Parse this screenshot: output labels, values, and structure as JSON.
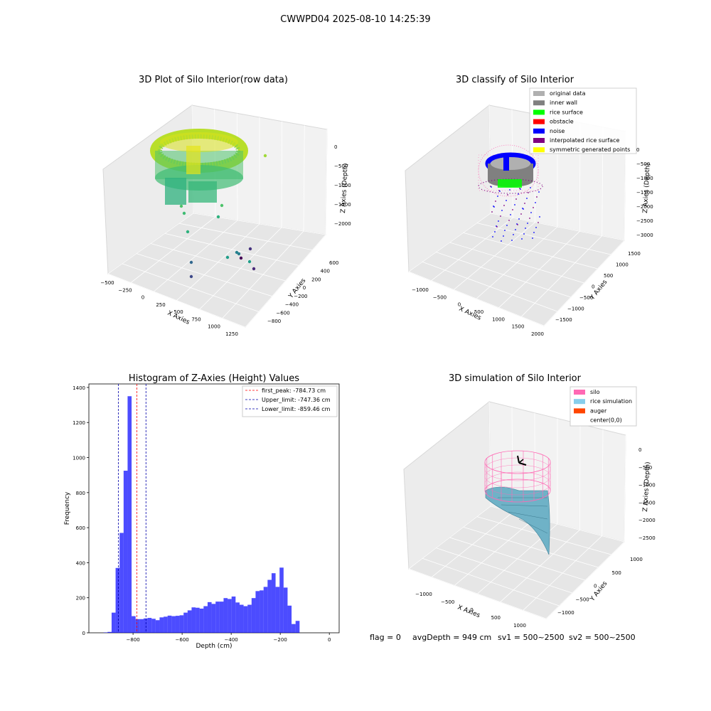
{
  "figure": {
    "suptitle": "CWWPD04 2025-08-10 14:25:39",
    "footer": {
      "flag": "flag = 0",
      "avg_depth": "avgDepth = 949 cm",
      "sv1": "sv1 = 500~2500",
      "sv2": "sv2 = 500~2500"
    }
  },
  "chart_data": [
    {
      "type": "scatter",
      "title": "3D Plot of Silo Interior(row data)",
      "xlabel": "X Axies",
      "ylabel": "Y Axies",
      "zlabel": "Z Axies (Depth)",
      "x_ticks": [
        "−500",
        "−250",
        "0",
        "250",
        "500",
        "750",
        "1000",
        "1250"
      ],
      "y_ticks": [
        "−800",
        "−600",
        "−400",
        "−200",
        "0",
        "200",
        "400",
        "600"
      ],
      "z_ticks": [
        "0",
        "−500",
        "−1000",
        "−1500",
        "−2000"
      ],
      "colormap": "viridis"
    },
    {
      "type": "scatter",
      "title": "3D classify of Silo Interior",
      "xlabel": "X Axies",
      "ylabel": "Y Axies",
      "zlabel": "Z Axies (Depth)",
      "x_ticks": [
        "−1000",
        "−500",
        "0",
        "500",
        "1000",
        "1500",
        "2000"
      ],
      "y_ticks": [
        "−1500",
        "−1000",
        "−500",
        "0",
        "500",
        "1000",
        "1500"
      ],
      "z_ticks": [
        "0",
        "−500",
        "−1000",
        "−1500",
        "−2000",
        "−2500",
        "−3000"
      ],
      "legend": [
        {
          "label": "original data",
          "color": "#b0b0b0"
        },
        {
          "label": "inner wall",
          "color": "#808080"
        },
        {
          "label": "rice surface",
          "color": "#00ff00"
        },
        {
          "label": "obstacle",
          "color": "#ff0000"
        },
        {
          "label": "noise",
          "color": "#0000ff"
        },
        {
          "label": "interpolated rice surface",
          "color": "#800080"
        },
        {
          "label": "symmetric generated points",
          "color": "#ffff00"
        }
      ],
      "legend_position": "top-right"
    },
    {
      "type": "bar",
      "title": "Histogram of Z-Axies (Height) Values",
      "xlabel": "Depth (cm)",
      "ylabel": "Frequency",
      "xlim": [
        -980,
        40
      ],
      "ylim": [
        0,
        1420
      ],
      "x_ticks": [
        -800,
        -600,
        -400,
        -200,
        0
      ],
      "x_tick_labels": [
        "−800",
        "−600",
        "−400",
        "−200",
        "0"
      ],
      "y_ticks": [
        0,
        200,
        400,
        600,
        800,
        1000,
        1200,
        1400
      ],
      "bin_width": 16.3,
      "bin_start": -920,
      "values": [
        2,
        5,
        115,
        370,
        570,
        925,
        1350,
        95,
        78,
        78,
        82,
        85,
        80,
        72,
        88,
        92,
        98,
        95,
        97,
        100,
        115,
        128,
        145,
        143,
        138,
        152,
        175,
        165,
        178,
        178,
        198,
        193,
        207,
        173,
        160,
        152,
        160,
        198,
        238,
        242,
        262,
        302,
        340,
        262,
        372,
        258,
        155,
        50,
        68
      ],
      "color": "#0000ff",
      "vlines": [
        {
          "label": "first_peak: -784.73 cm",
          "x": -784.73,
          "color": "#ff0000"
        },
        {
          "label": "Upper_limit: -747.36 cm",
          "x": -747.36,
          "color": "#0000aa"
        },
        {
          "label": "Lower_limit: -859.46 cm",
          "x": -859.46,
          "color": "#0000aa"
        }
      ],
      "legend_position": "top-right"
    },
    {
      "type": "surface",
      "title": "3D simulation of Silo Interior",
      "xlabel": "X Axies",
      "ylabel": "Y Axies",
      "zlabel": "Z Axies (Depth)",
      "x_ticks": [
        "−1000",
        "−500",
        "0",
        "500",
        "1000"
      ],
      "y_ticks": [
        "−1000",
        "−500",
        "0",
        "500",
        "1000"
      ],
      "z_ticks": [
        "0",
        "−500",
        "−1000",
        "−1500",
        "−2000",
        "−2500"
      ],
      "legend": [
        {
          "label": "silo",
          "color": "#ff69b4"
        },
        {
          "label": "rice simulation",
          "color": "#87ceeb"
        },
        {
          "label": "auger",
          "color": "#ff4500"
        },
        {
          "label": "center(0,0)",
          "color": "#ffffff"
        }
      ],
      "legend_position": "top-right"
    }
  ]
}
